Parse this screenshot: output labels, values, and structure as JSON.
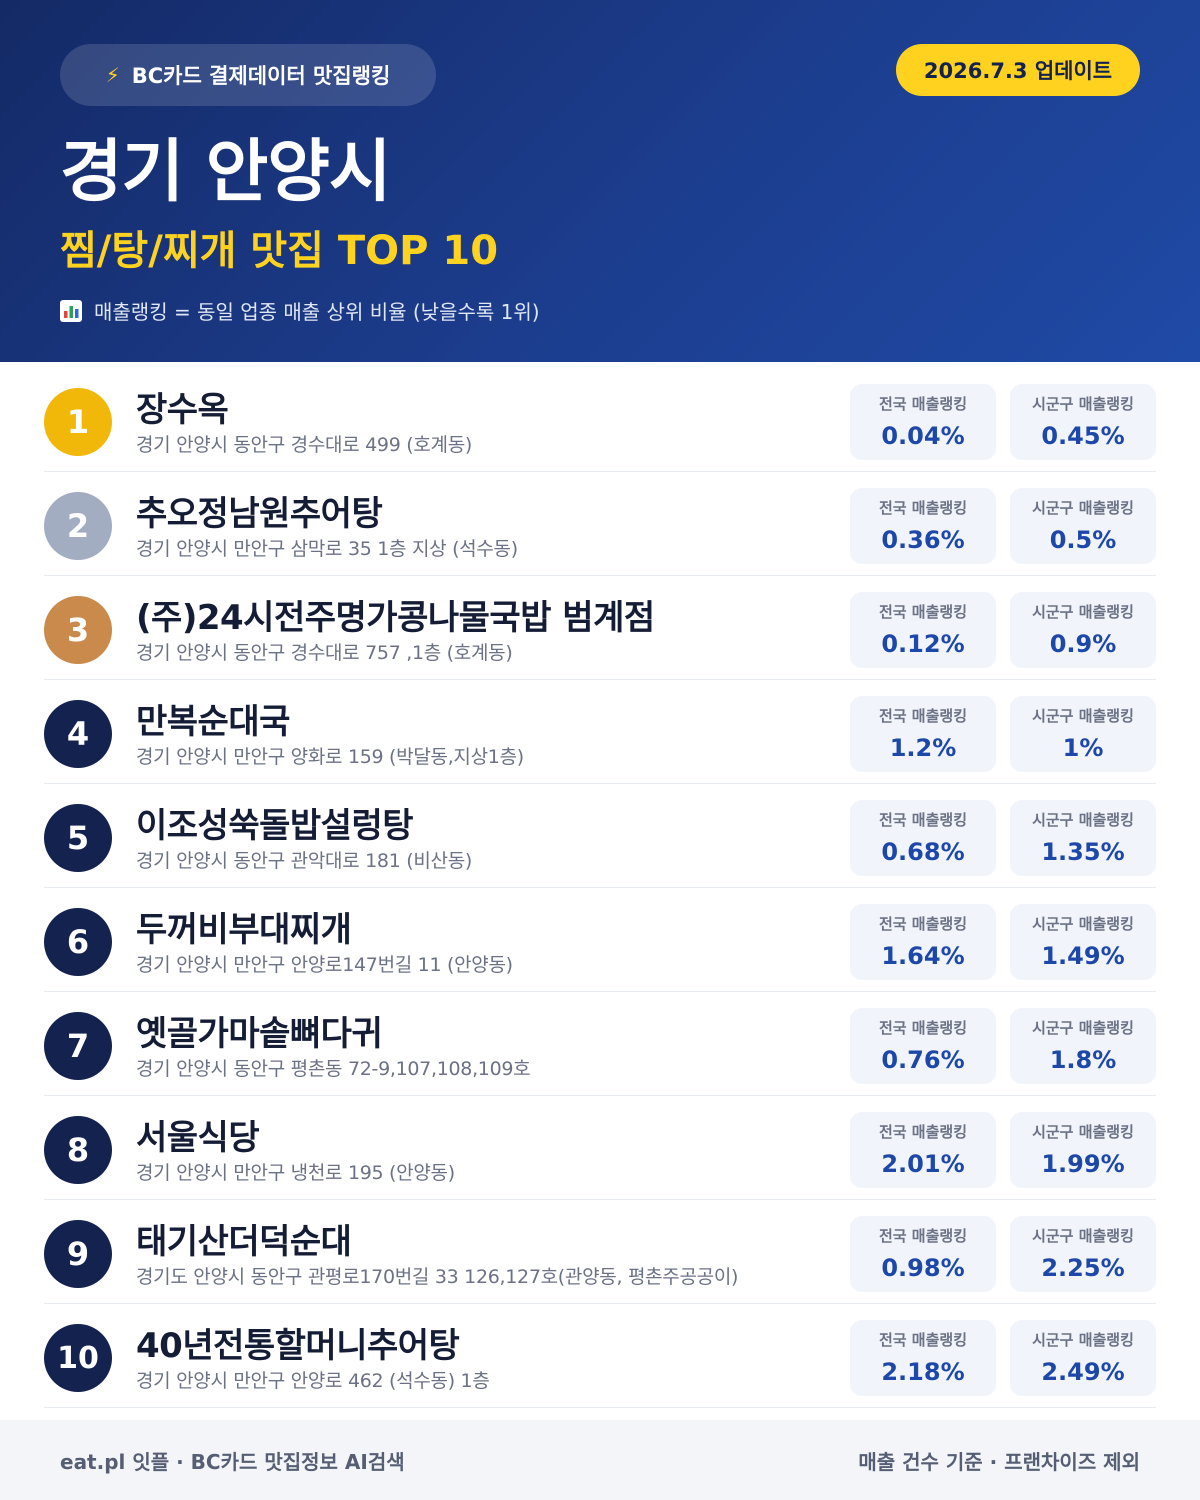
{
  "header": {
    "badge_icon": "lightning-bolt-icon",
    "badge": "BC카드 결제데이터 맛집랭킹",
    "update": "2026.7.3 업데이트",
    "city": "경기 안양시",
    "subtitle": "찜/탕/찌개 맛집 TOP 10",
    "note_icon": "bar-chart-icon",
    "note": "매출랭킹 = 동일 업종 매출 상위 비율 (낮을수록 1위)"
  },
  "colors": {
    "gold": "#f1b80a",
    "silver": "#a3adc2",
    "bronze": "#c98a4b",
    "navy": "#13224f",
    "accent_yellow": "#ffd21f",
    "value_blue": "#1d47a8"
  },
  "stat_labels": {
    "national": "전국 매출랭킹",
    "local": "시군구 매출랭킹"
  },
  "restaurants": [
    {
      "rank": "1",
      "name": "장수옥",
      "address": "경기 안양시 동안구 경수대로 499 (호계동)",
      "national": "0.04%",
      "local": "0.45%"
    },
    {
      "rank": "2",
      "name": "추오정남원추어탕",
      "address": "경기 안양시 만안구 삼막로 35 1층 지상 (석수동)",
      "national": "0.36%",
      "local": "0.5%"
    },
    {
      "rank": "3",
      "name": "(주)24시전주명가콩나물국밥 범계점",
      "address": "경기 안양시 동안구 경수대로 757 ,1층 (호계동)",
      "national": "0.12%",
      "local": "0.9%"
    },
    {
      "rank": "4",
      "name": "만복순대국",
      "address": "경기 안양시 만안구 양화로 159 (박달동,지상1층)",
      "national": "1.2%",
      "local": "1%"
    },
    {
      "rank": "5",
      "name": "이조성쑥돌밥설렁탕",
      "address": "경기 안양시 동안구 관악대로 181 (비산동)",
      "national": "0.68%",
      "local": "1.35%"
    },
    {
      "rank": "6",
      "name": "두꺼비부대찌개",
      "address": "경기 안양시 만안구 안양로147번길 11 (안양동)",
      "national": "1.64%",
      "local": "1.49%"
    },
    {
      "rank": "7",
      "name": "옛골가마솥뼈다귀",
      "address": "경기 안양시 동안구 평촌동 72-9,107,108,109호",
      "national": "0.76%",
      "local": "1.8%"
    },
    {
      "rank": "8",
      "name": "서울식당",
      "address": "경기 안양시 만안구 냉천로 195 (안양동)",
      "national": "2.01%",
      "local": "1.99%"
    },
    {
      "rank": "9",
      "name": "태기산더덕순대",
      "address": "경기도 안양시 동안구 관평로170번길 33 126,127호(관양동, 평촌주공공이)",
      "national": "0.98%",
      "local": "2.25%"
    },
    {
      "rank": "10",
      "name": "40년전통할머니추어탕",
      "address": "경기 안양시 만안구 안양로 462 (석수동) 1층",
      "national": "2.18%",
      "local": "2.49%"
    }
  ],
  "footer": {
    "left": "eat.pl 잇플 · BC카드 맛집정보 AI검색",
    "right": "매출 건수 기준 · 프랜차이즈 제외"
  }
}
